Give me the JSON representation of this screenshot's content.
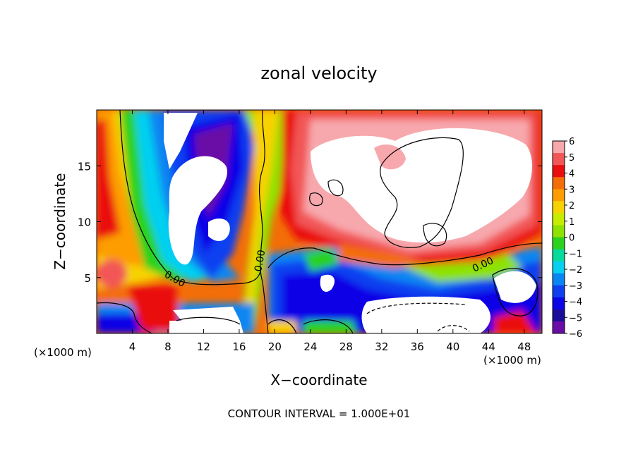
{
  "chart_data": {
    "type": "heatmap",
    "title": "zonal velocity",
    "xlabel": "X−coordinate",
    "ylabel": "Z−coordinate",
    "x_unit_left": "(×1000 m)",
    "x_unit_right": "(×1000 m)",
    "xlim": [
      0,
      50
    ],
    "ylim": [
      0,
      20
    ],
    "x_ticks": [
      4,
      8,
      12,
      16,
      20,
      24,
      28,
      32,
      36,
      40,
      44,
      48
    ],
    "y_ticks": [
      5,
      10,
      15
    ],
    "colorbar": {
      "min": -6,
      "max": 6,
      "ticks": [
        6,
        5,
        4,
        3,
        2,
        1,
        0,
        -1,
        -2,
        -3,
        -4,
        -5,
        -6
      ],
      "colors": [
        "#f7a8ad",
        "#f25757",
        "#ea0f0f",
        "#f36d08",
        "#fd9d01",
        "#f7d201",
        "#c8ec01",
        "#8ee201",
        "#2bd21e",
        "#07da9a",
        "#06d0f0",
        "#0a86f2",
        "#0f40f0",
        "#0b06e6",
        "#1a0d9a",
        "#6a0da6"
      ]
    },
    "contour_label": "0.00",
    "contour_labels_on_plot": [
      "0.00",
      "0.00",
      "0.00"
    ],
    "footer": "CONTOUR INTERVAL = 1.000E+01",
    "grid": false,
    "legend": "colorbar right"
  }
}
